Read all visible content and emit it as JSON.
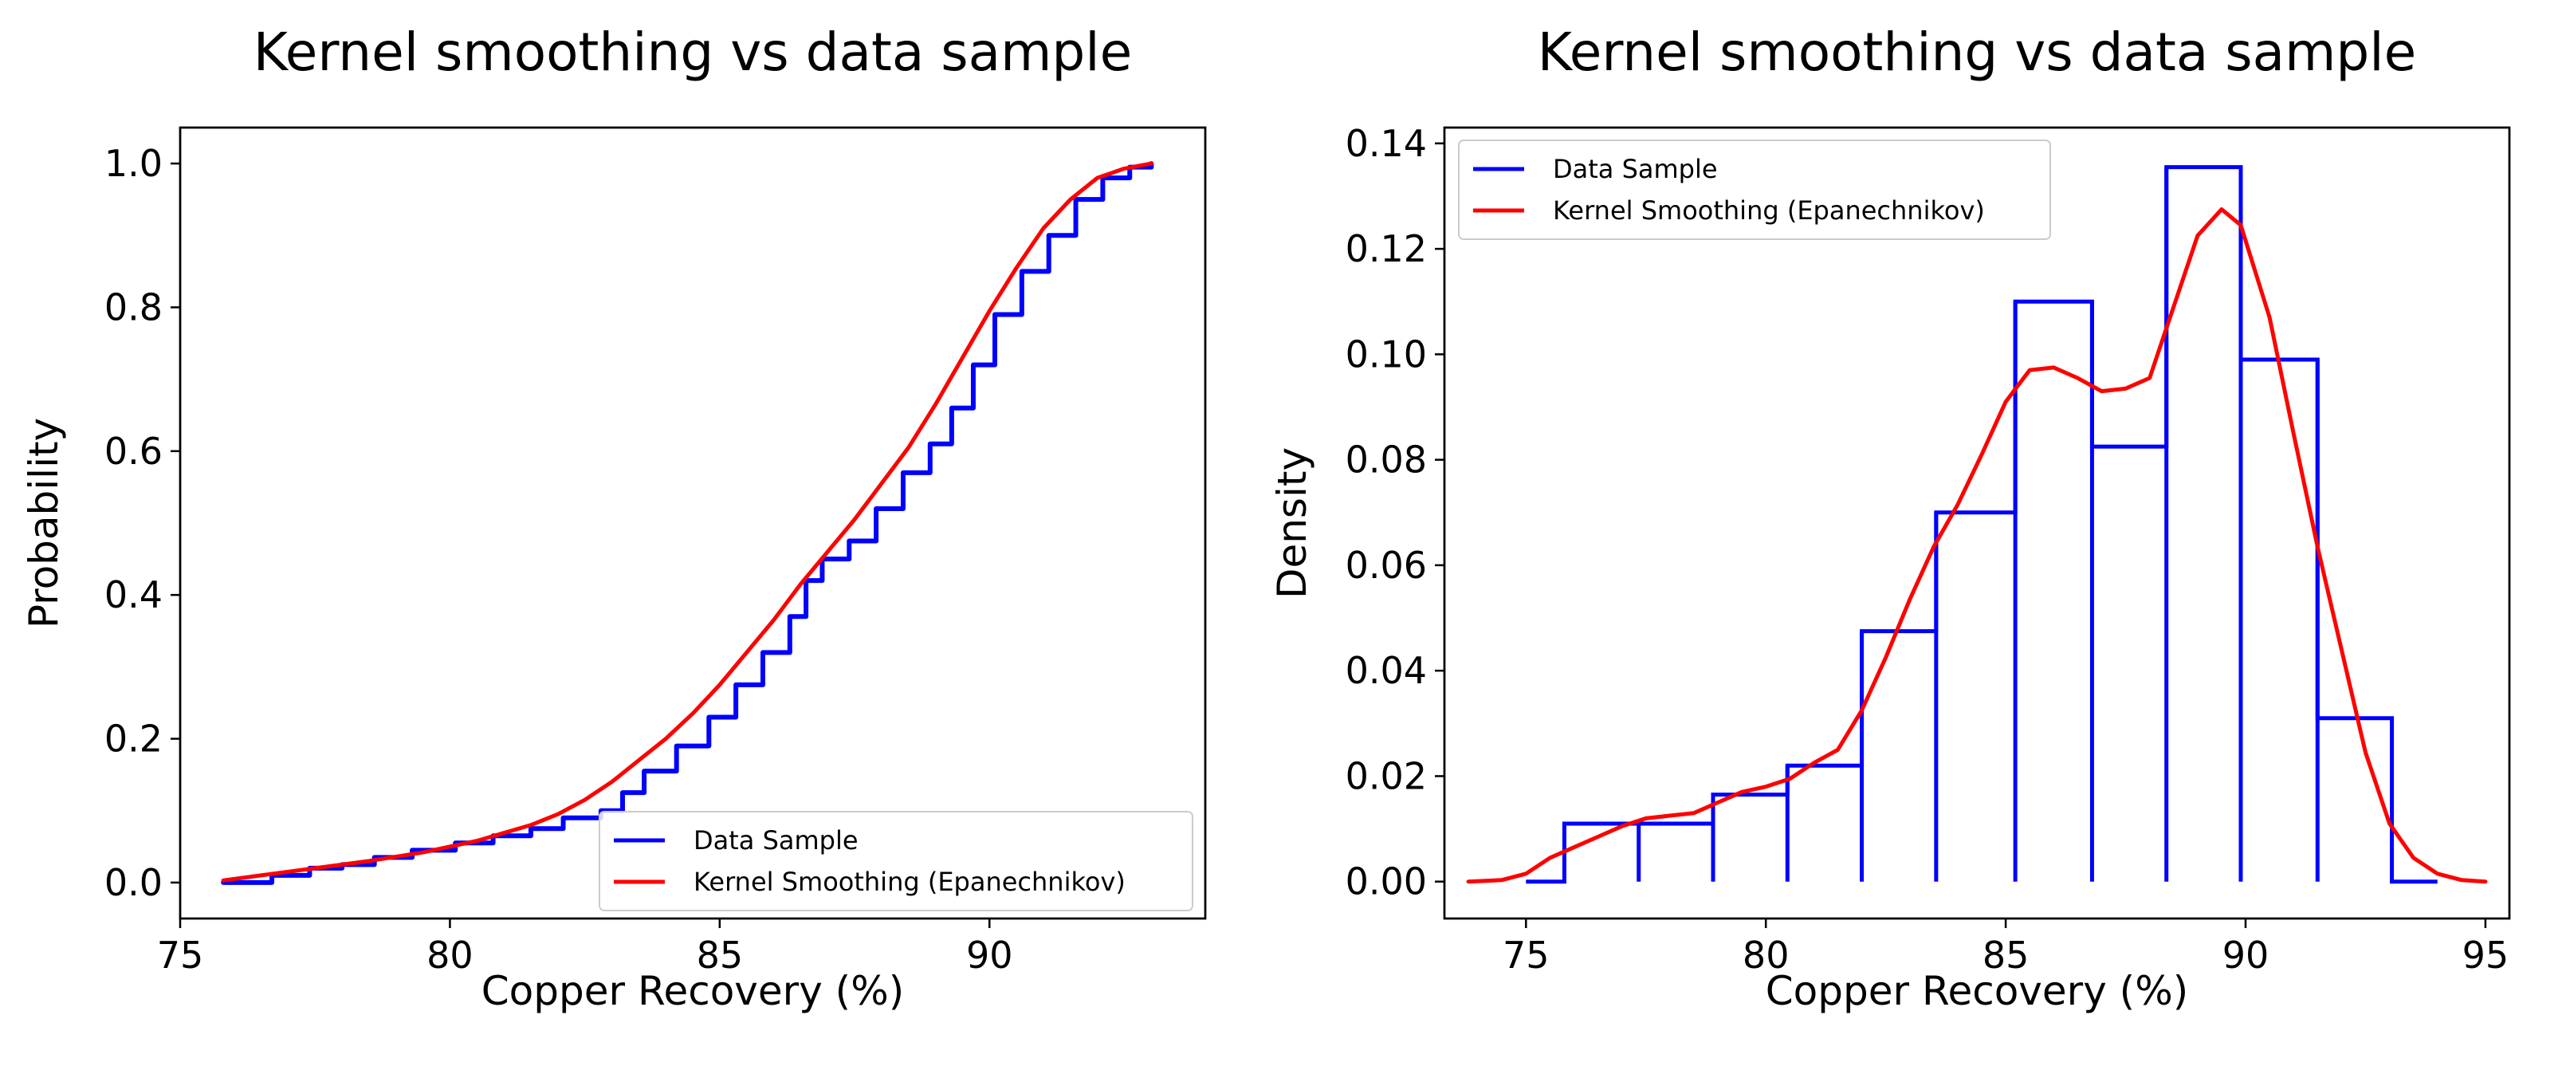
{
  "chart_data": [
    {
      "type": "line",
      "title": "Kernel smoothing vs data sample",
      "xlabel": "Copper Recovery (%)",
      "ylabel": "Probability",
      "xlim": [
        75,
        94
      ],
      "ylim": [
        -0.05,
        1.05
      ],
      "xticks": [
        75,
        80,
        85,
        90
      ],
      "xtick_labels": [
        "75",
        "80",
        "85",
        "90"
      ],
      "yticks": [
        0.0,
        0.2,
        0.4,
        0.6,
        0.8,
        1.0
      ],
      "ytick_labels": [
        "0.0",
        "0.2",
        "0.4",
        "0.6",
        "0.8",
        "1.0"
      ],
      "legend_position": "lower-right",
      "series": [
        {
          "name": "Data Sample",
          "color": "#0000ff",
          "step": true,
          "x": [
            75.8,
            76.7,
            77.4,
            78.0,
            78.6,
            79.3,
            80.1,
            80.8,
            81.5,
            82.1,
            82.8,
            83.2,
            83.6,
            84.2,
            84.8,
            85.3,
            85.8,
            86.3,
            86.6,
            86.9,
            87.4,
            87.9,
            88.4,
            88.9,
            89.3,
            89.7,
            90.1,
            90.6,
            91.1,
            91.6,
            92.1,
            92.6,
            93.0
          ],
          "y": [
            0.0,
            0.01,
            0.02,
            0.025,
            0.035,
            0.045,
            0.055,
            0.065,
            0.075,
            0.09,
            0.1,
            0.125,
            0.155,
            0.19,
            0.23,
            0.275,
            0.32,
            0.37,
            0.42,
            0.45,
            0.475,
            0.52,
            0.57,
            0.61,
            0.66,
            0.72,
            0.79,
            0.85,
            0.9,
            0.95,
            0.98,
            0.995,
            1.0
          ]
        },
        {
          "name": "Kernel Smoothing (Epanechnikov)",
          "color": "#ff0000",
          "x": [
            75.8,
            76.5,
            77.5,
            78.5,
            79.5,
            80.5,
            81.5,
            82.0,
            82.5,
            83.0,
            83.5,
            84.0,
            84.5,
            85.0,
            85.5,
            86.0,
            86.5,
            87.0,
            87.5,
            88.0,
            88.5,
            89.0,
            89.5,
            90.0,
            90.5,
            91.0,
            91.5,
            92.0,
            92.5,
            93.0
          ],
          "y": [
            0.003,
            0.01,
            0.02,
            0.03,
            0.042,
            0.058,
            0.08,
            0.095,
            0.115,
            0.14,
            0.17,
            0.2,
            0.235,
            0.275,
            0.32,
            0.365,
            0.415,
            0.46,
            0.505,
            0.555,
            0.605,
            0.665,
            0.73,
            0.795,
            0.855,
            0.91,
            0.95,
            0.98,
            0.993,
            1.0
          ]
        }
      ]
    },
    {
      "type": "bar",
      "title": "Kernel smoothing vs data sample",
      "xlabel": "Copper Recovery (%)",
      "ylabel": "Density",
      "xlim": [
        73.3,
        95.5
      ],
      "ylim": [
        -0.007,
        0.143
      ],
      "xticks": [
        75,
        80,
        85,
        90,
        95
      ],
      "xtick_labels": [
        "75",
        "80",
        "85",
        "90",
        "95"
      ],
      "yticks": [
        0.0,
        0.02,
        0.04,
        0.06,
        0.08,
        0.1,
        0.12,
        0.14
      ],
      "ytick_labels": [
        "0.00",
        "0.02",
        "0.04",
        "0.06",
        "0.08",
        "0.10",
        "0.12",
        "0.14"
      ],
      "legend_position": "upper-left",
      "histogram": {
        "name": "Data Sample",
        "color": "#0000ff",
        "bin_edges": [
          75.8,
          77.35,
          78.9,
          80.45,
          82.0,
          83.55,
          85.2,
          86.8,
          88.35,
          89.9,
          91.5,
          93.05
        ],
        "values": [
          0.011,
          0.011,
          0.0165,
          0.022,
          0.0475,
          0.07,
          0.11,
          0.0825,
          0.1355,
          0.099,
          0.031
        ],
        "baseline_extent": [
          75.0,
          94.0
        ]
      },
      "series": [
        {
          "name": "Kernel Smoothing (Epanechnikov)",
          "color": "#ff0000",
          "x": [
            73.8,
            74.5,
            75.0,
            75.5,
            76.0,
            76.5,
            77.0,
            77.5,
            78.0,
            78.5,
            79.0,
            79.5,
            80.0,
            80.5,
            81.0,
            81.5,
            82.0,
            82.5,
            83.0,
            83.5,
            84.0,
            84.5,
            85.0,
            85.5,
            86.0,
            86.5,
            87.0,
            87.5,
            88.0,
            88.5,
            89.0,
            89.5,
            89.9,
            90.5,
            91.0,
            91.5,
            92.0,
            92.5,
            93.0,
            93.5,
            94.0,
            94.5,
            95.0
          ],
          "y": [
            0.0,
            0.0003,
            0.0015,
            0.0045,
            0.0065,
            0.0085,
            0.0105,
            0.012,
            0.0125,
            0.013,
            0.015,
            0.017,
            0.018,
            0.0195,
            0.0225,
            0.025,
            0.0325,
            0.0425,
            0.0535,
            0.0635,
            0.0715,
            0.081,
            0.091,
            0.097,
            0.0975,
            0.0955,
            0.093,
            0.0935,
            0.0955,
            0.109,
            0.1225,
            0.1275,
            0.1245,
            0.107,
            0.085,
            0.0635,
            0.044,
            0.0245,
            0.011,
            0.0045,
            0.0015,
            0.0003,
            0.0
          ]
        }
      ]
    }
  ]
}
